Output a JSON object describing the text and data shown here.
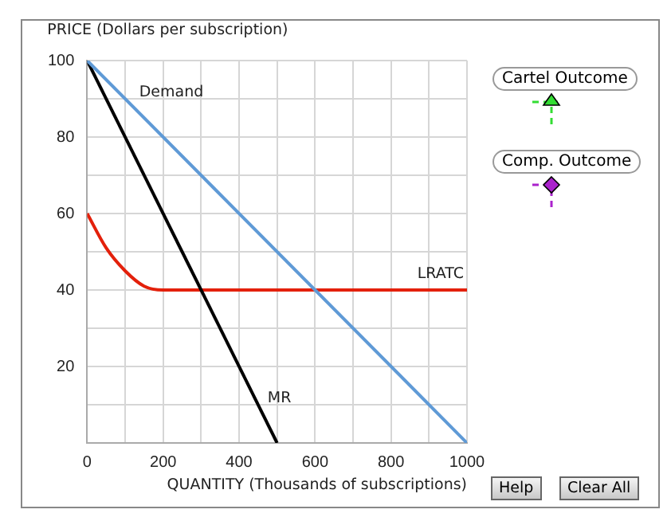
{
  "chart_data": {
    "type": "line",
    "ylabel": "PRICE (Dollars per subscription)",
    "xlabel": "QUANTITY (Thousands of subscriptions)",
    "xlim": [
      0,
      1000
    ],
    "xticks": [
      0,
      {
        "value": 100,
        "label": null
      },
      200,
      {
        "value": 300,
        "label": null
      },
      400,
      {
        "value": 500,
        "label": null
      },
      600,
      {
        "value": 700,
        "label": null
      },
      800,
      {
        "value": 900,
        "label": null
      },
      1000
    ],
    "ylim": [
      0,
      100
    ],
    "yticks": [
      {
        "value": 0,
        "label": null
      },
      {
        "value": 10,
        "label": null
      },
      20,
      {
        "value": 30,
        "label": null
      },
      40,
      {
        "value": 50,
        "label": null
      },
      60,
      {
        "value": 70,
        "label": null
      },
      80,
      {
        "value": 90,
        "label": null
      },
      100
    ],
    "grid": true,
    "legend": false,
    "marker": "none",
    "series": [
      {
        "name": "Demand",
        "color": "#5f9ad6",
        "x": [
          0,
          1000
        ],
        "values": [
          100,
          0
        ]
      },
      {
        "name": "MR",
        "color": "#000000",
        "x": [
          0,
          500
        ],
        "values": [
          100,
          0
        ]
      },
      {
        "name": "LRATC",
        "color": "#e3200b",
        "x": [
          0,
          50,
          100,
          150,
          200,
          1000
        ],
        "values": [
          60,
          51,
          45,
          41,
          40,
          40
        ]
      }
    ],
    "annotations": [
      "Cartel Outcome",
      "Comp. Outcome",
      "Help",
      "Clear All"
    ]
  }
}
